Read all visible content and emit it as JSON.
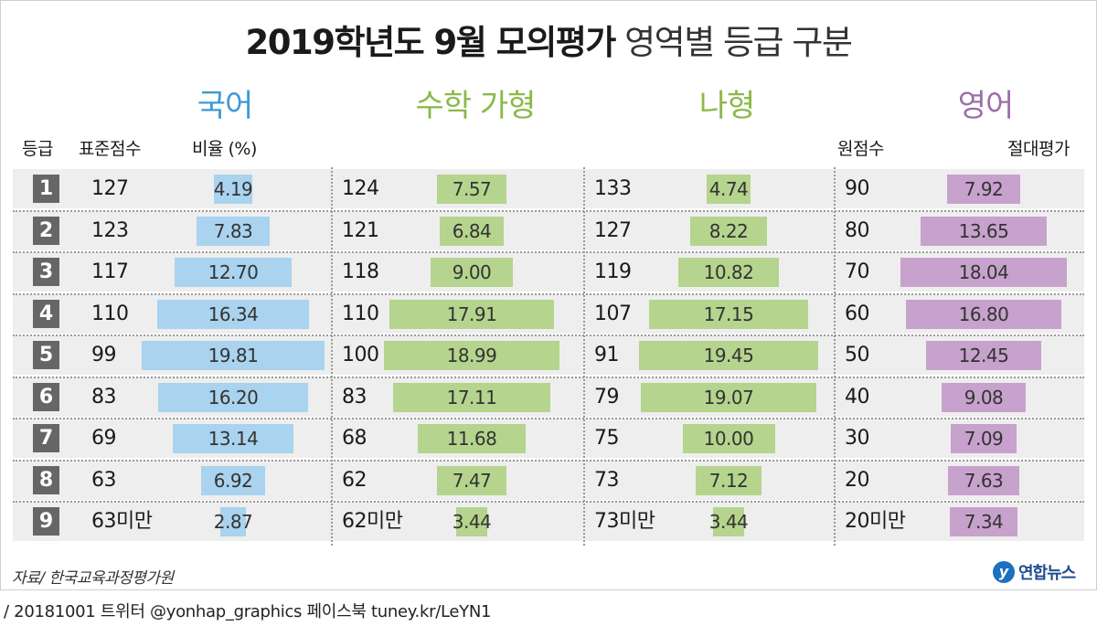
{
  "title_bold": "2019학년도 9월 모의평가",
  "title_rest": "영역별 등급 구분",
  "sections": [
    {
      "name": "국어",
      "color": "#3d9ad6"
    },
    {
      "name": "수학 가형",
      "color": "#8cb84a"
    },
    {
      "name": "나형",
      "color": "#8cb84a"
    },
    {
      "name": "영어",
      "color": "#9b6fa8"
    }
  ],
  "headers": {
    "grade": "등급",
    "std_score": "표준점수",
    "ratio": "비율 (%)",
    "raw_score": "원점수",
    "absolute": "절대평가"
  },
  "source": "자료/ 한국교육과정평가원",
  "logo": "연합뉴스",
  "footer": "/ 20181001  트위터 @yonhap_graphics  페이스북 tuney.kr/LeYN1",
  "colors": {
    "korean": "#a9d3ee",
    "math": "#b5d48d",
    "english": "#c7a2cc",
    "grade_box": "#666666",
    "row_bg": "#eeeeee"
  },
  "chart_data": {
    "type": "table",
    "grades": [
      "1",
      "2",
      "3",
      "4",
      "5",
      "6",
      "7",
      "8",
      "9"
    ],
    "korean": {
      "scores": [
        "127",
        "123",
        "117",
        "110",
        "99",
        "83",
        "69",
        "63",
        "63미만"
      ],
      "ratios": [
        4.19,
        7.83,
        12.7,
        16.34,
        19.81,
        16.2,
        13.14,
        6.92,
        2.87
      ]
    },
    "math_ga": {
      "scores": [
        "124",
        "121",
        "118",
        "110",
        "100",
        "83",
        "68",
        "62",
        "62미만"
      ],
      "ratios": [
        7.57,
        6.84,
        9.0,
        17.91,
        18.99,
        17.11,
        11.68,
        7.47,
        3.44
      ]
    },
    "math_na": {
      "scores": [
        "133",
        "127",
        "119",
        "107",
        "91",
        "79",
        "75",
        "73",
        "73미만"
      ],
      "ratios": [
        4.74,
        8.22,
        10.82,
        17.15,
        19.45,
        19.07,
        10.0,
        7.12,
        3.44
      ]
    },
    "english": {
      "scores": [
        "90",
        "80",
        "70",
        "60",
        "50",
        "40",
        "30",
        "20",
        "20미만"
      ],
      "ratios": [
        7.92,
        13.65,
        18.04,
        16.8,
        12.45,
        9.08,
        7.09,
        7.63,
        7.34
      ]
    }
  }
}
